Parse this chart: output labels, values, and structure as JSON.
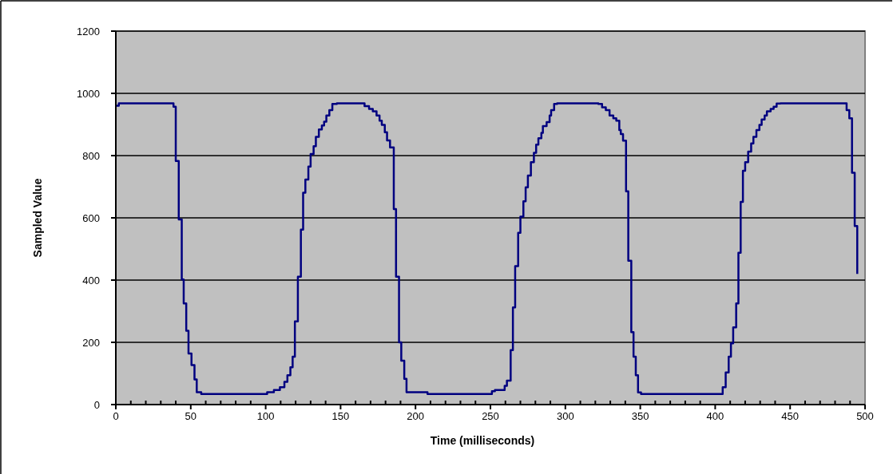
{
  "chart_data": {
    "type": "step",
    "xlabel": "Time (milliseconds)",
    "ylabel": "Sampled Value",
    "xlim": [
      0,
      500
    ],
    "ylim": [
      0,
      1200
    ],
    "xticks": [
      0,
      {
        "value": 10,
        "label": null
      },
      {
        "value": 20,
        "label": null
      },
      {
        "value": 30,
        "label": null
      },
      {
        "value": 40,
        "label": null
      },
      50,
      {
        "value": 60,
        "label": null
      },
      {
        "value": 70,
        "label": null
      },
      {
        "value": 80,
        "label": null
      },
      {
        "value": 90,
        "label": null
      },
      100,
      {
        "value": 110,
        "label": null
      },
      {
        "value": 120,
        "label": null
      },
      {
        "value": 130,
        "label": null
      },
      {
        "value": 140,
        "label": null
      },
      150,
      {
        "value": 160,
        "label": null
      },
      {
        "value": 170,
        "label": null
      },
      {
        "value": 180,
        "label": null
      },
      {
        "value": 190,
        "label": null
      },
      200,
      {
        "value": 210,
        "label": null
      },
      {
        "value": 220,
        "label": null
      },
      {
        "value": 230,
        "label": null
      },
      {
        "value": 240,
        "label": null
      },
      250,
      {
        "value": 260,
        "label": null
      },
      {
        "value": 270,
        "label": null
      },
      {
        "value": 280,
        "label": null
      },
      {
        "value": 290,
        "label": null
      },
      300,
      {
        "value": 310,
        "label": null
      },
      {
        "value": 320,
        "label": null
      },
      {
        "value": 330,
        "label": null
      },
      {
        "value": 340,
        "label": null
      },
      350,
      {
        "value": 360,
        "label": null
      },
      {
        "value": 370,
        "label": null
      },
      {
        "value": 380,
        "label": null
      },
      {
        "value": 390,
        "label": null
      },
      400,
      {
        "value": 410,
        "label": null
      },
      {
        "value": 420,
        "label": null
      },
      {
        "value": 430,
        "label": null
      },
      {
        "value": 440,
        "label": null
      },
      450,
      {
        "value": 460,
        "label": null
      },
      {
        "value": 470,
        "label": null
      },
      {
        "value": 480,
        "label": null
      },
      {
        "value": 490,
        "label": null
      },
      500
    ],
    "yticks": [
      0,
      200,
      400,
      600,
      800,
      1000,
      1200
    ],
    "grid": "y",
    "marker": "none",
    "line_style": "solid",
    "series": [
      {
        "color": "#000080",
        "x": [
          0,
          2,
          38.5,
          40,
          42,
          44,
          45.3,
          47,
          48.5,
          50.5,
          52.5,
          54,
          57,
          101,
          105.5,
          109.5,
          112.5,
          114.5,
          116.5,
          118,
          119.5,
          121.5,
          123.5,
          125,
          126.5,
          128.5,
          130,
          132,
          133.5,
          135.5,
          137.5,
          139,
          140.5,
          142.5,
          144.5,
          147.5,
          166,
          169,
          171.5,
          174,
          176,
          177.5,
          179.5,
          181,
          183,
          185.5,
          187,
          189,
          190.5,
          192.5,
          194,
          208,
          251,
          253,
          259.5,
          261,
          263.5,
          265,
          266.5,
          268.5,
          270,
          272,
          273.5,
          275,
          277,
          279,
          280.5,
          282,
          284,
          285,
          287.5,
          289.5,
          290.5,
          292.5,
          294.5,
          322,
          324.5,
          327,
          329.5,
          332,
          334,
          336,
          337,
          338.5,
          340.5,
          342,
          344,
          345.5,
          347,
          348.5,
          350.5,
          405,
          407,
          409,
          410.5,
          412,
          414,
          415.5,
          417,
          418.5,
          420,
          422,
          424,
          425.5,
          427.5,
          429.5,
          431,
          433,
          434.5,
          437,
          439,
          441,
          443.5,
          487.7,
          489.5,
          491.3,
          493.1,
          494.8
        ],
        "values": [
          960,
          968,
          957,
          783,
          595,
          402,
          325,
          237,
          164,
          127,
          81,
          40,
          34,
          40,
          47,
          56,
          73,
          94,
          120,
          154,
          267,
          411,
          562,
          681,
          723,
          765,
          805,
          830,
          860,
          884,
          897,
          909,
          929,
          946,
          966,
          968,
          959,
          950,
          942,
          929,
          912,
          899,
          875,
          849,
          826,
          628,
          411,
          200,
          141,
          83,
          40,
          34,
          43,
          47,
          60,
          77,
          175,
          312,
          445,
          552,
          604,
          653,
          698,
          736,
          779,
          809,
          835,
          856,
          873,
          895,
          908,
          929,
          946,
          966,
          968,
          966,
          955,
          946,
          929,
          920,
          912,
          882,
          869,
          848,
          685,
          462,
          233,
          154,
          94,
          39,
          34,
          56,
          103,
          154,
          197,
          248,
          325,
          488,
          651,
          751,
          779,
          813,
          839,
          860,
          882,
          899,
          916,
          929,
          942,
          950,
          957,
          967,
          968,
          946,
          920,
          745,
          574,
          420
        ]
      }
    ]
  }
}
